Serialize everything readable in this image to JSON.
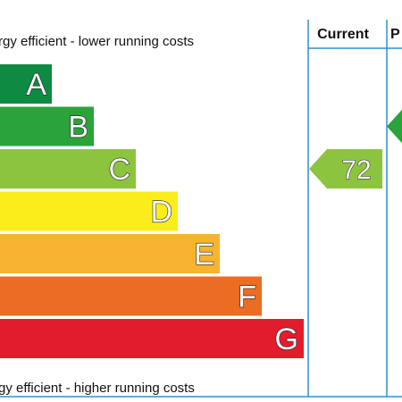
{
  "chart_data": {
    "type": "bar",
    "top_caption": "rgy efficient - lower running costs",
    "bottom_caption": "gy efficient - higher running costs",
    "columns": {
      "current": "Current",
      "potential": "P"
    },
    "bands": [
      {
        "letter": "A",
        "color": "#0f8a43"
      },
      {
        "letter": "B",
        "color": "#2aa339"
      },
      {
        "letter": "C",
        "color": "#8cc43f"
      },
      {
        "letter": "D",
        "color": "#fbed1b"
      },
      {
        "letter": "E",
        "color": "#f8b32f"
      },
      {
        "letter": "F",
        "color": "#ed6c23"
      },
      {
        "letter": "G",
        "color": "#e21c2d"
      }
    ],
    "current_rating": {
      "value": "72",
      "band": "C",
      "color": "#8cc43f"
    },
    "potential_rating": {
      "value": "",
      "band": "B",
      "color": "#2aa339"
    },
    "border_color": "#2f8fcf"
  }
}
